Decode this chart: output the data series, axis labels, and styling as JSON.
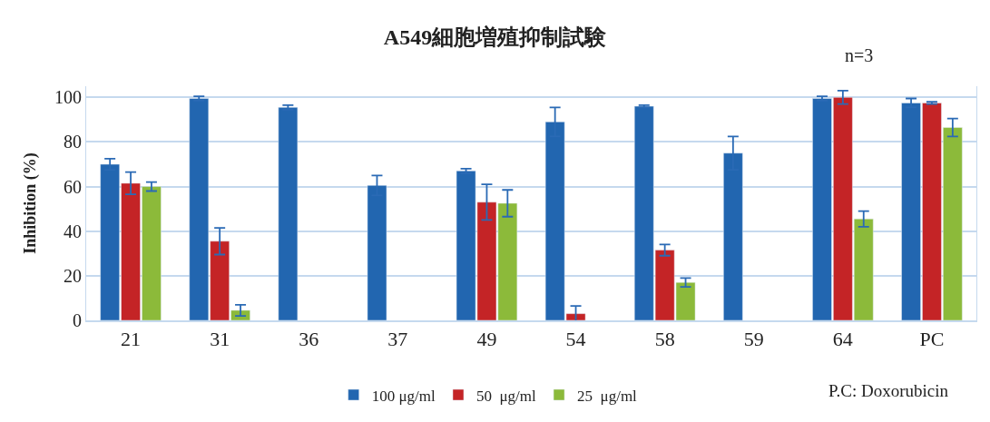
{
  "chart_data": {
    "type": "bar",
    "title": "A549細胞増殖抑制試験",
    "ylabel": "Inhibition (%)",
    "categories": [
      "21",
      "31",
      "36",
      "37",
      "49",
      "54",
      "58",
      "59",
      "64",
      "PC"
    ],
    "series": [
      {
        "name": "100 μg/ml",
        "color": "#2266b0",
        "values": [
          70,
          99.5,
          95.5,
          60.5,
          67,
          89,
          96,
          75,
          99.5,
          97.5
        ],
        "errors": [
          2.5,
          1,
          1,
          4.5,
          1,
          6.5,
          0.5,
          7.5,
          1,
          2
        ]
      },
      {
        "name": "50  μg/ml",
        "color": "#c42426",
        "values": [
          61.5,
          35.5,
          null,
          null,
          53,
          3,
          31.5,
          null,
          100,
          97.5
        ],
        "errors": [
          5,
          6,
          null,
          null,
          8,
          3.5,
          2.5,
          null,
          3,
          0.5
        ]
      },
      {
        "name": "25  μg/ml",
        "color": "#8cba3a",
        "values": [
          60,
          4.5,
          null,
          null,
          52.5,
          null,
          17,
          null,
          45.5,
          86.5
        ],
        "errors": [
          2,
          2.5,
          null,
          null,
          6,
          null,
          2,
          null,
          3.5,
          4
        ]
      }
    ],
    "ylim": [
      0,
      105
    ],
    "yticks": [
      0,
      20,
      40,
      60,
      80,
      100
    ],
    "grid": "y",
    "legend": "bottom",
    "annotations": [
      "n=3",
      "P.C: Doxorubicin"
    ]
  }
}
